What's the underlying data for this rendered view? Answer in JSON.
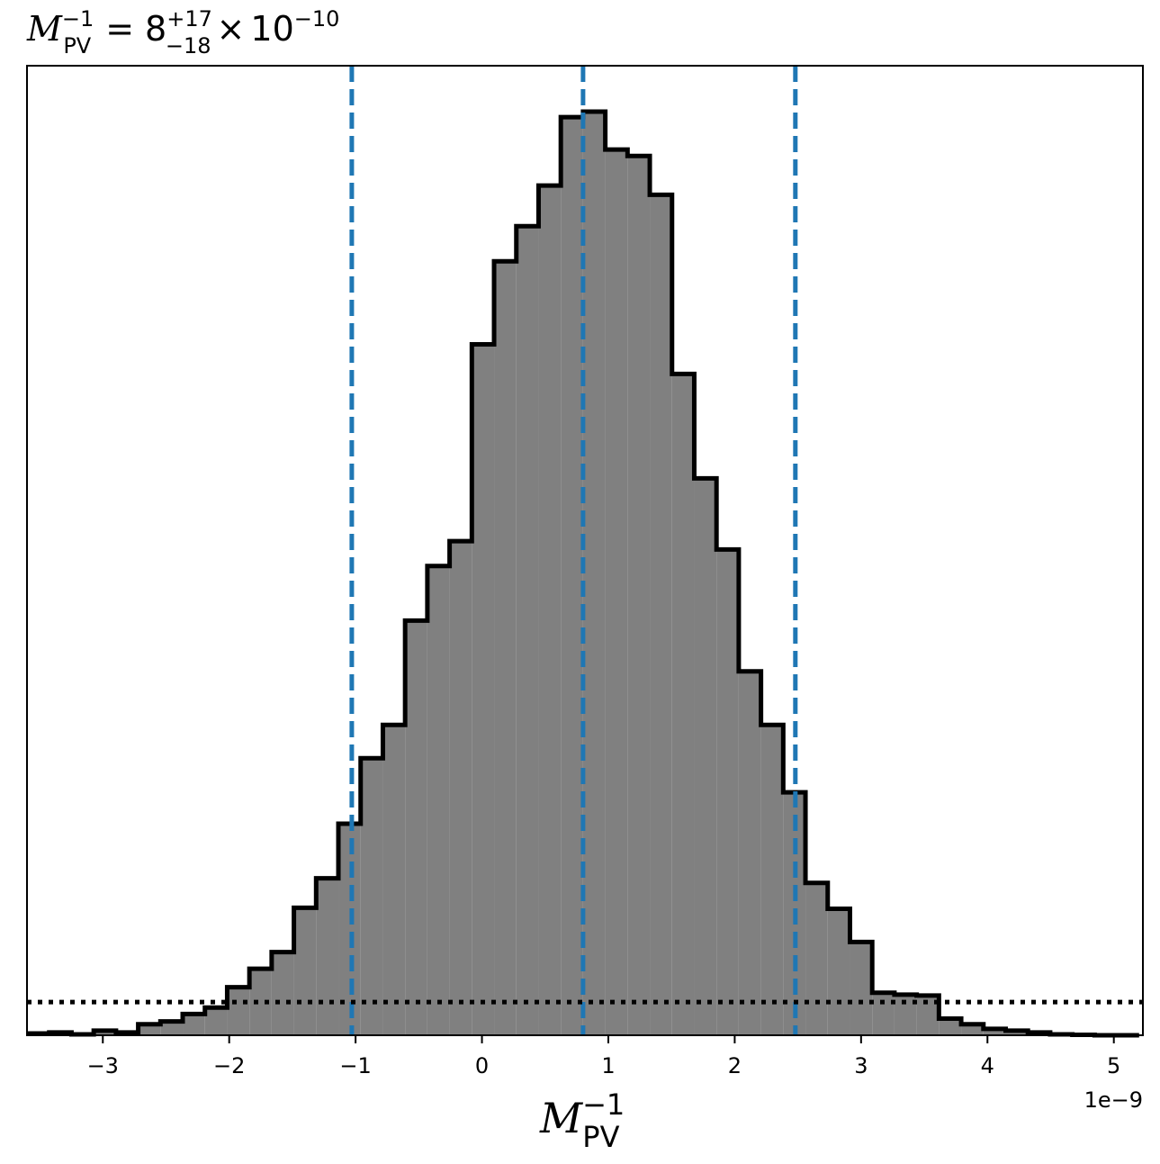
{
  "chart_data": {
    "type": "bar",
    "title": {
      "symbol": "M",
      "symbol_sub": "PV",
      "symbol_sup": "−1",
      "equals": "=",
      "value": "8",
      "err_plus": "+17",
      "err_minus": "−18",
      "times": "×",
      "base": "10",
      "exponent": "−10"
    },
    "xlabel": {
      "symbol": "M",
      "sub": "PV",
      "sup": "−1"
    },
    "x_offset_label": "1e−9",
    "xlim": [
      -3.6,
      5.23
    ],
    "ylim": [
      0,
      1.0
    ],
    "xticks": [
      -3,
      -2,
      -1,
      0,
      1,
      2,
      3,
      4,
      5
    ],
    "xtick_labels": [
      "−3",
      "−2",
      "−1",
      "0",
      "1",
      "2",
      "3",
      "4",
      "5"
    ],
    "bin_edges": [
      -3.6,
      -3.424,
      -3.248,
      -3.072,
      -2.896,
      -2.72,
      -2.544,
      -2.368,
      -2.192,
      -2.016,
      -1.84,
      -1.664,
      -1.488,
      -1.312,
      -1.136,
      -0.96,
      -0.784,
      -0.608,
      -0.432,
      -0.256,
      -0.08,
      0.096,
      0.272,
      0.448,
      0.624,
      0.8,
      0.976,
      1.152,
      1.328,
      1.504,
      1.68,
      1.856,
      2.032,
      2.208,
      2.384,
      2.56,
      2.736,
      2.912,
      3.088,
      3.264,
      3.44,
      3.616,
      3.792,
      3.968,
      4.144,
      4.32,
      4.496,
      4.672,
      4.848,
      5.024,
      5.2
    ],
    "bin_heights": [
      0.002,
      0.003,
      0.001,
      0.005,
      0.003,
      0.012,
      0.015,
      0.023,
      0.03,
      0.052,
      0.072,
      0.09,
      0.138,
      0.17,
      0.229,
      0.3,
      0.336,
      0.449,
      0.508,
      0.535,
      0.748,
      0.838,
      0.876,
      0.92,
      0.994,
      1.0,
      0.959,
      0.952,
      0.91,
      0.716,
      0.603,
      0.526,
      0.394,
      0.336,
      0.263,
      0.165,
      0.137,
      0.101,
      0.046,
      0.044,
      0.043,
      0.018,
      0.012,
      0.007,
      0.005,
      0.003,
      0.001,
      0.0005,
      0.0,
      0.0
    ],
    "vlines": [
      -1.03,
      0.8,
      2.48
    ],
    "vline_style": "dashed",
    "hline": 0.036,
    "hline_style": "dotted",
    "grid": false,
    "colors": {
      "fill": "#808080",
      "edge": "#000000",
      "vline": "#1f77b4",
      "hline": "#000000"
    }
  }
}
